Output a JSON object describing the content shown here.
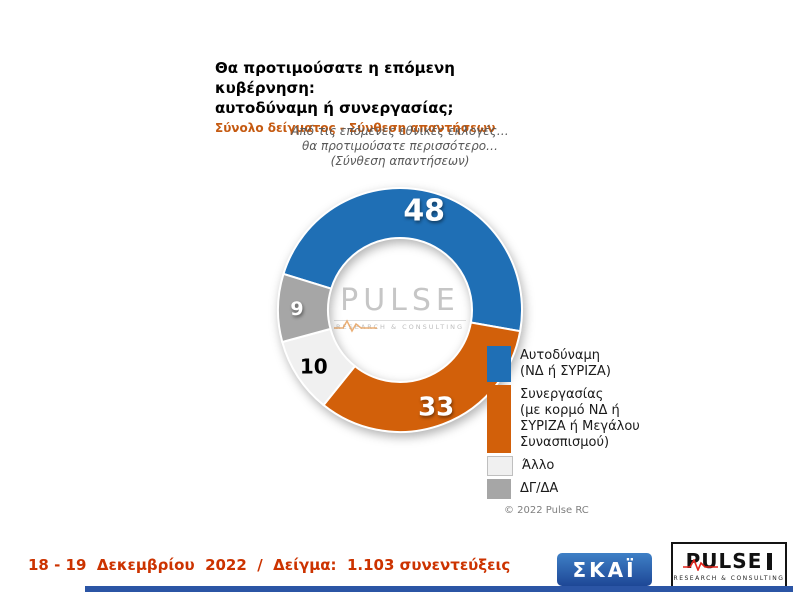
{
  "header": {
    "title_line1": "Θα προτιμούσατε η επόμενη κυβέρνηση:",
    "title_line2": "αυτοδύναμη ή συνεργασίας;",
    "subtitle": "Σύνολο δείγματος - Σύνθεση απαντήσεων"
  },
  "question_note": {
    "line1": "Από τις επόμενες εθνικές εκλογές…",
    "line2": "θα προτιμούσατε περισσότερο…",
    "line3": "(Σύνθεση απαντήσεων)"
  },
  "chart_data": {
    "type": "pie",
    "variant": "donut",
    "title": "Θα προτιμούσατε η επόμενη κυβέρνηση: αυτοδύναμη ή συνεργασίας;",
    "start_angle_deg": -72.8,
    "clockwise": true,
    "legend_position": "right",
    "total": 100,
    "slices": [
      {
        "label": "Αυτοδύναμη (ΝΔ ή ΣΥΡΙΖΑ)",
        "value": 48,
        "color": "#1F6FB5",
        "value_label_color": "#FFFFFF"
      },
      {
        "label": "Συνεργασίας (με κορμό ΝΔ ή ΣΥΡΙΖΑ ή Μεγάλου Συνασπισμού)",
        "value": 33,
        "color": "#D2600A",
        "value_label_color": "#FFFFFF"
      },
      {
        "label": "Άλλο",
        "value": 10,
        "color": "#F0F0F0",
        "value_label_color": "#000000",
        "marker_border": "#BFBFBF"
      },
      {
        "label": "ΔΓ/ΔΑ",
        "value": 9,
        "color": "#A6A6A6",
        "value_label_color": "#FFFFFF"
      }
    ],
    "legend": [
      {
        "lines": [
          "Αυτοδύναμη",
          "(ΝΔ ή ΣΥΡΙΖΑ)"
        ],
        "color": "#1F6FB5"
      },
      {
        "lines": [
          "Συνεργασίας",
          "(με κορμό ΝΔ ή",
          "ΣΥΡΙΖΑ ή Μεγάλου",
          "Συνασπισμού)"
        ],
        "color": "#D2600A"
      },
      {
        "lines": [
          "Άλλο"
        ],
        "color": "#F0F0F0",
        "marker_border": "#BFBFBF"
      },
      {
        "lines": [
          "ΔΓ/ΔΑ"
        ],
        "color": "#A6A6A6"
      }
    ]
  },
  "watermark": {
    "name": "PULSE",
    "tagline": "RESEARCH & CONSULTING"
  },
  "copyright": "© 2022 Pulse RC",
  "footer": {
    "date_sample": "18 - 19  Δεκεμβρίου  2022  /  Δείγμα:  1.103 συνεντεύξεις",
    "skai_logo": "ΣΚΑΪ",
    "pulse_logo": "PULSE",
    "pulse_tagline": "RESEARCH & CONSULTING"
  },
  "colors": {
    "blue": "#1F6FB5",
    "orange": "#D2600A",
    "light": "#F0F0F0",
    "gray": "#A6A6A6",
    "subtitle_orange": "#C55A11",
    "footer_text": "#CC3300",
    "note_gray": "#595959",
    "skai_blue": "#2456A8",
    "bottom_bar": "#2B55A5",
    "pulse_red": "#E2231A"
  }
}
